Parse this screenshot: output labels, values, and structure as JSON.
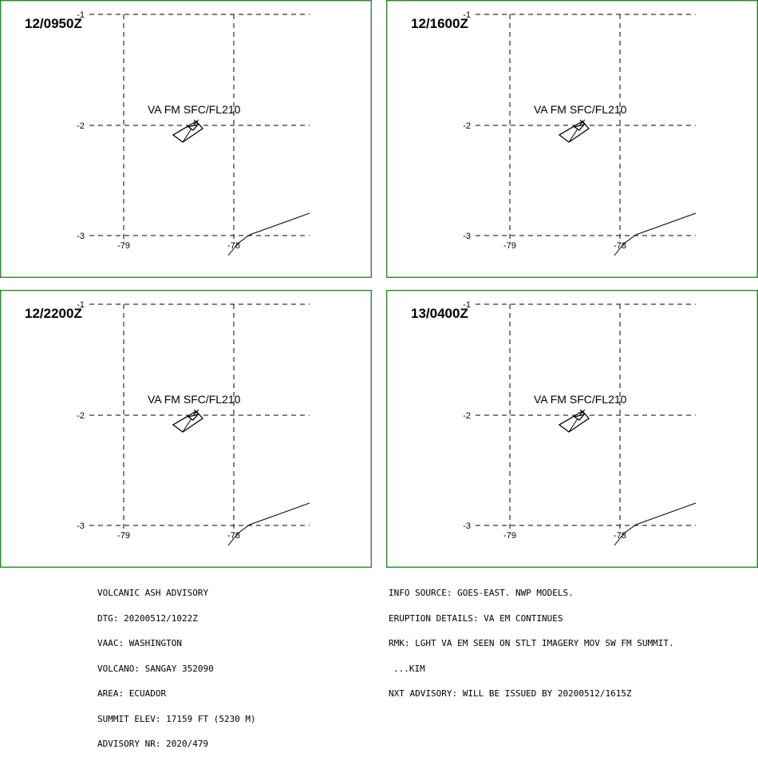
{
  "panels": [
    {
      "time": "12/0950Z",
      "label": "VA FM SFC/FL210"
    },
    {
      "time": "12/1600Z",
      "label": "VA FM SFC/FL210"
    },
    {
      "time": "12/2200Z",
      "label": "VA FM SFC/FL210"
    },
    {
      "time": "13/0400Z",
      "label": "VA FM SFC/FL210"
    }
  ],
  "map": {
    "lat_ticks": [
      "-1",
      "-2",
      "-3"
    ],
    "lon_ticks": [
      "-79",
      "-78"
    ]
  },
  "advisory": {
    "left": [
      "VOLCANIC ASH ADVISORY",
      "DTG: 20200512/1022Z",
      "VAAC: WASHINGTON",
      "VOLCANO: SANGAY 352090",
      "AREA: ECUADOR",
      "SUMMIT ELEV: 17159 FT (5230 M)",
      "ADVISORY NR: 2020/479"
    ],
    "right": [
      "INFO SOURCE: GOES-EAST. NWP MODELS.",
      "ERUPTION DETAILS: VA EM CONTINUES",
      "RMK: LGHT VA EM SEEN ON STLT IMAGERY MOV SW FM SUMMIT.",
      "...KIM",
      "NXT ADVISORY: WILL BE ISSUED BY 20200512/1615Z"
    ]
  }
}
